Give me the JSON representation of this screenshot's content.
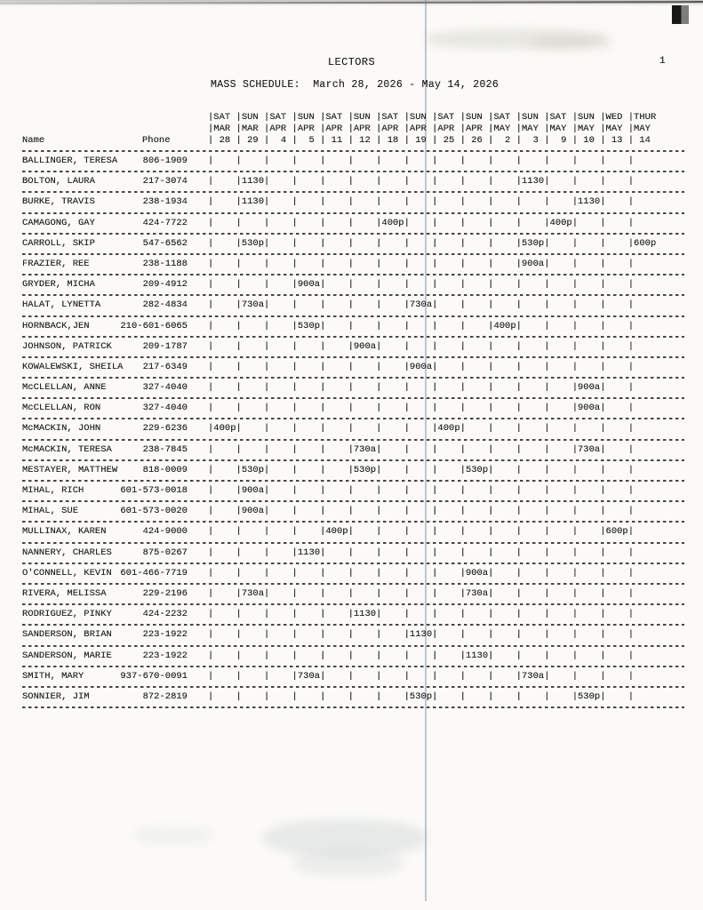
{
  "page": {
    "title": "LECTORS",
    "page_number": "1",
    "subtitle": "MASS SCHEDULE:  March 28, 2026 - May 14, 2026",
    "ink_color": "#262626"
  },
  "table": {
    "name_header": "Name",
    "phone_header": "Phone",
    "columns": [
      {
        "day": "SAT",
        "month": "MAR",
        "date": "28"
      },
      {
        "day": "SUN",
        "month": "MAR",
        "date": "29"
      },
      {
        "day": "SAT",
        "month": "APR",
        "date": "4"
      },
      {
        "day": "SUN",
        "month": "APR",
        "date": "5"
      },
      {
        "day": "SAT",
        "month": "APR",
        "date": "11"
      },
      {
        "day": "SUN",
        "month": "APR",
        "date": "12"
      },
      {
        "day": "SAT",
        "month": "APR",
        "date": "18"
      },
      {
        "day": "SUN",
        "month": "APR",
        "date": "19"
      },
      {
        "day": "SAT",
        "month": "APR",
        "date": "25"
      },
      {
        "day": "SUN",
        "month": "APR",
        "date": "26"
      },
      {
        "day": "SAT",
        "month": "MAY",
        "date": "2"
      },
      {
        "day": "SUN",
        "month": "MAY",
        "date": "3"
      },
      {
        "day": "SAT",
        "month": "MAY",
        "date": "9"
      },
      {
        "day": "SUN",
        "month": "MAY",
        "date": "10"
      },
      {
        "day": "WED",
        "month": "MAY",
        "date": "13"
      },
      {
        "day": "THUR",
        "month": "MAY",
        "date": "14"
      }
    ],
    "rows": [
      {
        "name": "BALLINGER, TERESA",
        "phone": "806-1909",
        "cells": [
          "",
          "",
          "",
          "",
          "",
          "",
          "",
          "",
          "",
          "",
          "",
          "",
          "",
          "",
          "",
          ""
        ]
      },
      {
        "name": "BOLTON, LAURA",
        "phone": "217-3074",
        "cells": [
          "",
          "1130",
          "",
          "",
          "",
          "",
          "",
          "",
          "",
          "",
          "",
          "1130",
          "",
          "",
          "",
          ""
        ]
      },
      {
        "name": "BURKE, TRAVIS",
        "phone": "238-1934",
        "cells": [
          "",
          "1130",
          "",
          "",
          "",
          "",
          "",
          "",
          "",
          "",
          "",
          "",
          "",
          "1130",
          "",
          ""
        ]
      },
      {
        "name": "CAMAGONG, GAY",
        "phone": "424-7722",
        "cells": [
          "",
          "",
          "",
          "",
          "",
          "",
          "400p",
          "",
          "",
          "",
          "",
          "",
          "400p",
          "",
          "",
          ""
        ]
      },
      {
        "name": "CARROLL, SKIP",
        "phone": "547-6562",
        "cells": [
          "",
          "530p",
          "",
          "",
          "",
          "",
          "",
          "",
          "",
          "",
          "",
          "530p",
          "",
          "",
          "",
          "600p"
        ]
      },
      {
        "name": "FRAZIER, REE",
        "phone": "238-1188",
        "cells": [
          "",
          "",
          "",
          "",
          "",
          "",
          "",
          "",
          "",
          "",
          "",
          "900a",
          "",
          "",
          "",
          ""
        ]
      },
      {
        "name": "GRYDER, MICHA",
        "phone": "209-4912",
        "cells": [
          "",
          "",
          "",
          "900a",
          "",
          "",
          "",
          "",
          "",
          "",
          "",
          "",
          "",
          "",
          "",
          ""
        ]
      },
      {
        "name": "HALAT, LYNETTA",
        "phone": "282-4834",
        "cells": [
          "",
          "730a",
          "",
          "",
          "",
          "",
          "",
          "730a",
          "",
          "",
          "",
          "",
          "",
          "",
          "",
          ""
        ]
      },
      {
        "name": "HORNBACK,JEN",
        "phone": "210-601-6065",
        "cells": [
          "",
          "",
          "",
          "530p",
          "",
          "",
          "",
          "",
          "",
          "",
          "400p",
          "",
          "",
          "",
          "",
          ""
        ]
      },
      {
        "name": "JOHNSON, PATRICK",
        "phone": "209-1787",
        "cells": [
          "",
          "",
          "",
          "",
          "",
          "900a",
          "",
          "",
          "",
          "",
          "",
          "",
          "",
          "",
          "",
          ""
        ]
      },
      {
        "name": "KOWALEWSKI, SHEILA",
        "phone": "217-6349",
        "cells": [
          "",
          "",
          "",
          "",
          "",
          "",
          "",
          "900a",
          "",
          "",
          "",
          "",
          "",
          "",
          "",
          ""
        ]
      },
      {
        "name": "McCLELLAN, ANNE",
        "phone": "327-4040",
        "cells": [
          "",
          "",
          "",
          "",
          "",
          "",
          "",
          "",
          "",
          "",
          "",
          "",
          "",
          "900a",
          "",
          ""
        ]
      },
      {
        "name": "McCLELLAN, RON",
        "phone": "327-4040",
        "cells": [
          "",
          "",
          "",
          "",
          "",
          "",
          "",
          "",
          "",
          "",
          "",
          "",
          "",
          "900a",
          "",
          ""
        ]
      },
      {
        "name": "McMACKIN, JOHN",
        "phone": "229-6236",
        "cells": [
          "400p",
          "",
          "",
          "",
          "",
          "",
          "",
          "",
          "400p",
          "",
          "",
          "",
          "",
          "",
          "",
          ""
        ]
      },
      {
        "name": "McMACKIN, TERESA",
        "phone": "238-7845",
        "cells": [
          "",
          "",
          "",
          "",
          "",
          "730a",
          "",
          "",
          "",
          "",
          "",
          "",
          "",
          "730a",
          "",
          ""
        ]
      },
      {
        "name": "MESTAYER, MATTHEW",
        "phone": "818-0009",
        "cells": [
          "",
          "530p",
          "",
          "",
          "",
          "530p",
          "",
          "",
          "",
          "530p",
          "",
          "",
          "",
          "",
          "",
          ""
        ]
      },
      {
        "name": "MIHAL, RICH",
        "phone": "601-573-0018",
        "cells": [
          "",
          "900a",
          "",
          "",
          "",
          "",
          "",
          "",
          "",
          "",
          "",
          "",
          "",
          "",
          "",
          ""
        ]
      },
      {
        "name": "MIHAL, SUE",
        "phone": "601-573-0020",
        "cells": [
          "",
          "900a",
          "",
          "",
          "",
          "",
          "",
          "",
          "",
          "",
          "",
          "",
          "",
          "",
          "",
          ""
        ]
      },
      {
        "name": "MULLINAX, KAREN",
        "phone": "424-9000",
        "cells": [
          "",
          "",
          "",
          "",
          "400p",
          "",
          "",
          "",
          "",
          "",
          "",
          "",
          "",
          "",
          "600p",
          ""
        ]
      },
      {
        "name": "NANNERY, CHARLES",
        "phone": "875-0267",
        "cells": [
          "",
          "",
          "",
          "1130",
          "",
          "",
          "",
          "",
          "",
          "",
          "",
          "",
          "",
          "",
          "",
          ""
        ]
      },
      {
        "name": "O'CONNELL, KEVIN",
        "phone": "601-466-7719",
        "cells": [
          "",
          "",
          "",
          "",
          "",
          "",
          "",
          "",
          "",
          "900a",
          "",
          "",
          "",
          "",
          "",
          ""
        ]
      },
      {
        "name": "RIVERA, MELISSA",
        "phone": "229-2196",
        "cells": [
          "",
          "730a",
          "",
          "",
          "",
          "",
          "",
          "",
          "",
          "730a",
          "",
          "",
          "",
          "",
          "",
          ""
        ]
      },
      {
        "name": "RODRIGUEZ, PINKY",
        "phone": "424-2232",
        "cells": [
          "",
          "",
          "",
          "",
          "",
          "1130",
          "",
          "",
          "",
          "",
          "",
          "",
          "",
          "",
          "",
          ""
        ]
      },
      {
        "name": "SANDERSON, BRIAN",
        "phone": "223-1922",
        "cells": [
          "",
          "",
          "",
          "",
          "",
          "",
          "",
          "1130",
          "",
          "",
          "",
          "",
          "",
          "",
          "",
          ""
        ]
      },
      {
        "name": "SANDERSON, MARIE",
        "phone": "223-1922",
        "cells": [
          "",
          "",
          "",
          "",
          "",
          "",
          "",
          "",
          "",
          "1130",
          "",
          "",
          "",
          "",
          "",
          ""
        ]
      },
      {
        "name": "SMITH, MARY",
        "phone": "937-670-0091",
        "cells": [
          "",
          "",
          "",
          "730a",
          "",
          "",
          "",
          "",
          "",
          "",
          "",
          "730a",
          "",
          "",
          "",
          ""
        ]
      },
      {
        "name": "SONNIER, JIM",
        "phone": "872-2819",
        "cells": [
          "",
          "",
          "",
          "",
          "",
          "",
          "",
          "530p",
          "",
          "",
          "",
          "",
          "",
          "530p",
          "",
          ""
        ]
      }
    ]
  }
}
